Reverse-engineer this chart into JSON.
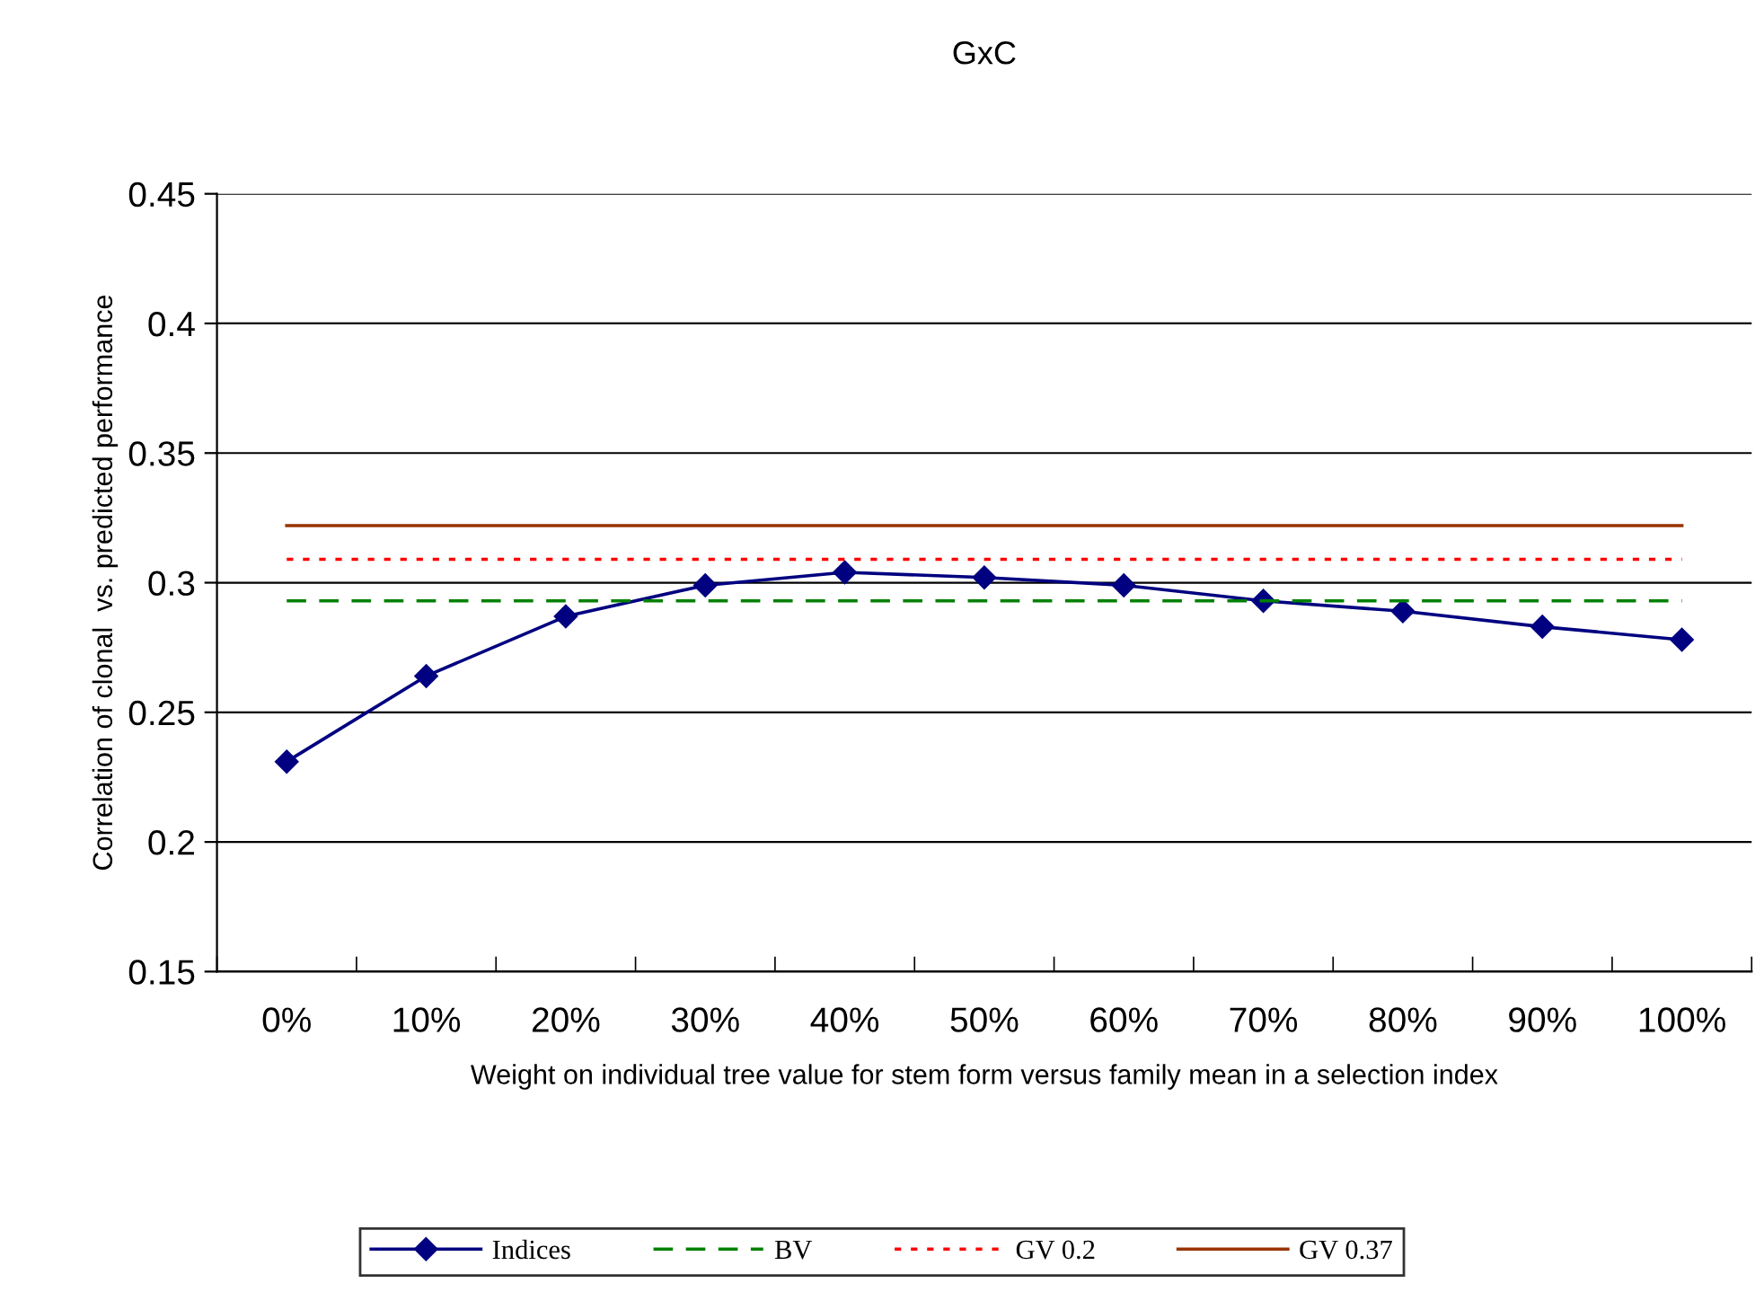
{
  "chart_data": {
    "type": "line",
    "title": "GxC",
    "xlabel": "Weight on individual tree value for stem form versus family mean in a selection index",
    "ylabel": "Correlation of clonal  vs. predicted performance",
    "categories": [
      "0%",
      "10%",
      "20%",
      "30%",
      "40%",
      "50%",
      "60%",
      "70%",
      "80%",
      "90%",
      "100%"
    ],
    "series": [
      {
        "name": "Indices",
        "color": "#000080",
        "marker": "diamond",
        "line_style": "solid",
        "values": [
          0.231,
          0.264,
          0.287,
          0.299,
          0.304,
          0.302,
          0.299,
          0.293,
          0.289,
          0.283,
          0.278
        ]
      },
      {
        "name": "BV",
        "color": "#008000",
        "marker": "none",
        "line_style": "dashed",
        "values": [
          0.293,
          0.293,
          0.293,
          0.293,
          0.293,
          0.293,
          0.293,
          0.293,
          0.293,
          0.293,
          0.293
        ]
      },
      {
        "name": "GV 0.2",
        "color": "#ff0000",
        "marker": "none",
        "line_style": "dotted",
        "values": [
          0.309,
          0.309,
          0.309,
          0.309,
          0.309,
          0.309,
          0.309,
          0.309,
          0.309,
          0.309,
          0.309
        ]
      },
      {
        "name": "GV 0.37",
        "color": "#993300",
        "marker": "none",
        "line_style": "solid",
        "values": [
          0.322,
          0.322,
          0.322,
          0.322,
          0.322,
          0.322,
          0.322,
          0.322,
          0.322,
          0.322,
          0.322
        ]
      }
    ],
    "ylim": [
      0.15,
      0.45
    ],
    "yticks": [
      0.15,
      0.2,
      0.25,
      0.3,
      0.35,
      0.4,
      0.45
    ],
    "grid": "y",
    "legend": "bottom"
  }
}
